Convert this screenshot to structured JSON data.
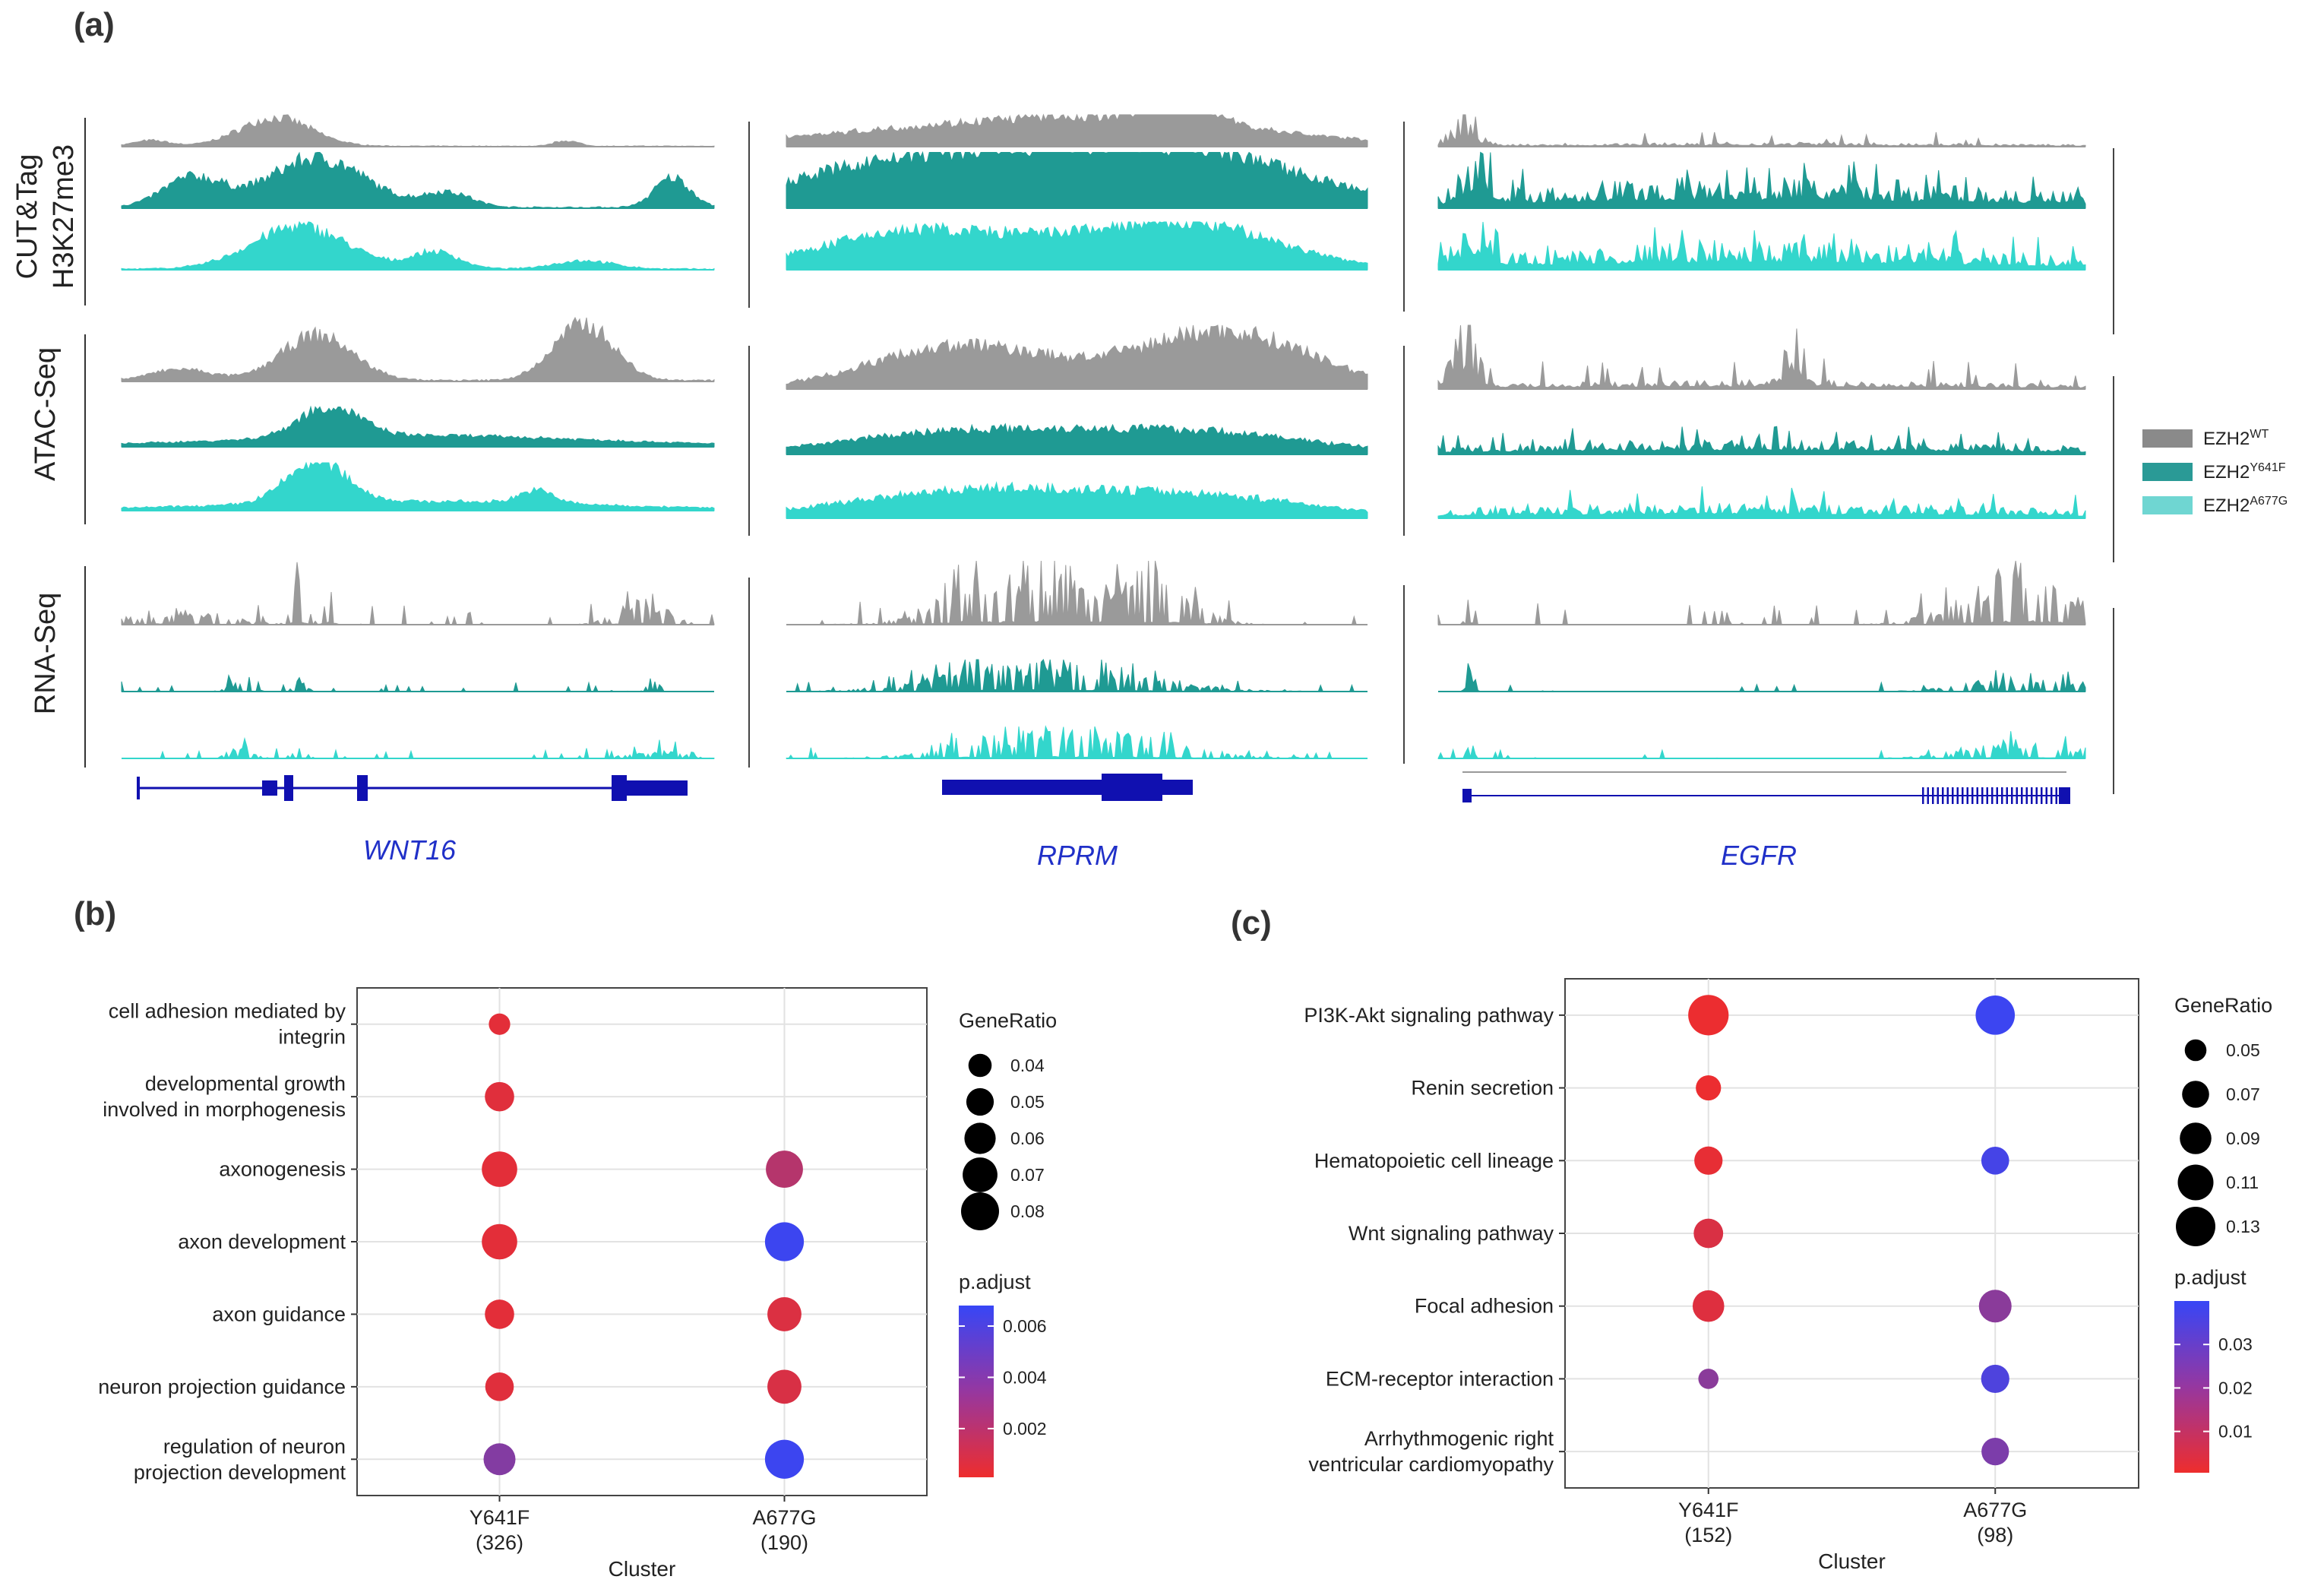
{
  "panel_labels": {
    "a": "(a)",
    "b": "(b)",
    "c": "(c)"
  },
  "panel_a": {
    "row_groups": [
      "CUT&Tag",
      "H3K27me3",
      "ATAC-Seq",
      "RNA-Seq"
    ],
    "genes": [
      "WNT16",
      "RPRM",
      "EGFR"
    ],
    "legend": {
      "items": [
        {
          "base": "EZH2",
          "sup": "WT",
          "color": "#8a8a8a"
        },
        {
          "base": "EZH2",
          "sup": "Y641F",
          "color": "#2a9a96"
        },
        {
          "base": "EZH2",
          "sup": "A677G",
          "color": "#6fd6d2"
        }
      ]
    },
    "track_colors": [
      "#9a9a9a",
      "#1f9a93",
      "#33d6cc"
    ],
    "gene_model_color": "#1010b0"
  },
  "chart_data": [
    {
      "type": "scatter",
      "id": "b",
      "xlabel": "Cluster",
      "ylabel": "",
      "categories": [
        "Y641F\n(326)",
        "A677G\n(190)"
      ],
      "terms": [
        "cell adhesion mediated by\nintegrin",
        "developmental growth\ninvolved in morphogenesis",
        "axonogenesis",
        "axon development",
        "axon guidance",
        "neuron projection guidance",
        "regulation of neuron\nprojection development"
      ],
      "points": [
        {
          "term": 0,
          "cluster": 0,
          "gene_ratio": 0.036,
          "p_adjust": 0.0005
        },
        {
          "term": 1,
          "cluster": 0,
          "gene_ratio": 0.055,
          "p_adjust": 0.0006
        },
        {
          "term": 2,
          "cluster": 0,
          "gene_ratio": 0.072,
          "p_adjust": 0.0005
        },
        {
          "term": 2,
          "cluster": 1,
          "gene_ratio": 0.077,
          "p_adjust": 0.0022
        },
        {
          "term": 3,
          "cluster": 0,
          "gene_ratio": 0.072,
          "p_adjust": 0.0005
        },
        {
          "term": 3,
          "cluster": 1,
          "gene_ratio": 0.083,
          "p_adjust": 0.0066
        },
        {
          "term": 4,
          "cluster": 0,
          "gene_ratio": 0.055,
          "p_adjust": 0.0005
        },
        {
          "term": 4,
          "cluster": 1,
          "gene_ratio": 0.068,
          "p_adjust": 0.0008
        },
        {
          "term": 5,
          "cluster": 0,
          "gene_ratio": 0.053,
          "p_adjust": 0.0006
        },
        {
          "term": 5,
          "cluster": 1,
          "gene_ratio": 0.068,
          "p_adjust": 0.0009
        },
        {
          "term": 6,
          "cluster": 0,
          "gene_ratio": 0.062,
          "p_adjust": 0.004
        },
        {
          "term": 6,
          "cluster": 1,
          "gene_ratio": 0.083,
          "p_adjust": 0.0066
        }
      ],
      "size_legend": {
        "title": "GeneRatio",
        "values": [
          "0.04",
          "0.05",
          "0.06",
          "0.07",
          "0.08"
        ]
      },
      "color_legend": {
        "title": "p.adjust",
        "ticks": [
          "0.006",
          "0.004",
          "0.002"
        ],
        "range": [
          0.0001,
          0.0068
        ]
      }
    },
    {
      "type": "scatter",
      "id": "c",
      "xlabel": "Cluster",
      "ylabel": "",
      "categories": [
        "Y641F\n(152)",
        "A677G\n(98)"
      ],
      "terms": [
        "PI3K-Akt signaling pathway",
        "Renin secretion",
        "Hematopoietic cell lineage",
        "Wnt signaling pathway",
        "Focal adhesion",
        "ECM-receptor interaction",
        "Arrhythmogenic right\nventricular cardiomyopathy"
      ],
      "points": [
        {
          "term": 0,
          "cluster": 0,
          "gene_ratio": 0.135,
          "p_adjust": 0.001
        },
        {
          "term": 0,
          "cluster": 1,
          "gene_ratio": 0.128,
          "p_adjust": 0.039
        },
        {
          "term": 1,
          "cluster": 0,
          "gene_ratio": 0.063,
          "p_adjust": 0.001
        },
        {
          "term": 2,
          "cluster": 0,
          "gene_ratio": 0.075,
          "p_adjust": 0.002
        },
        {
          "term": 2,
          "cluster": 1,
          "gene_ratio": 0.073,
          "p_adjust": 0.037
        },
        {
          "term": 3,
          "cluster": 0,
          "gene_ratio": 0.08,
          "p_adjust": 0.005
        },
        {
          "term": 4,
          "cluster": 0,
          "gene_ratio": 0.09,
          "p_adjust": 0.004
        },
        {
          "term": 4,
          "cluster": 1,
          "gene_ratio": 0.095,
          "p_adjust": 0.022
        },
        {
          "term": 5,
          "cluster": 0,
          "gene_ratio": 0.045,
          "p_adjust": 0.022
        },
        {
          "term": 5,
          "cluster": 1,
          "gene_ratio": 0.075,
          "p_adjust": 0.035
        },
        {
          "term": 6,
          "cluster": 1,
          "gene_ratio": 0.072,
          "p_adjust": 0.025
        }
      ],
      "size_legend": {
        "title": "GeneRatio",
        "values": [
          "0.05",
          "0.07",
          "0.09",
          "0.11",
          "0.13"
        ]
      },
      "color_legend": {
        "title": "p.adjust",
        "ticks": [
          "0.03",
          "0.02",
          "0.01"
        ],
        "range": [
          0.0005,
          0.04
        ]
      }
    }
  ]
}
